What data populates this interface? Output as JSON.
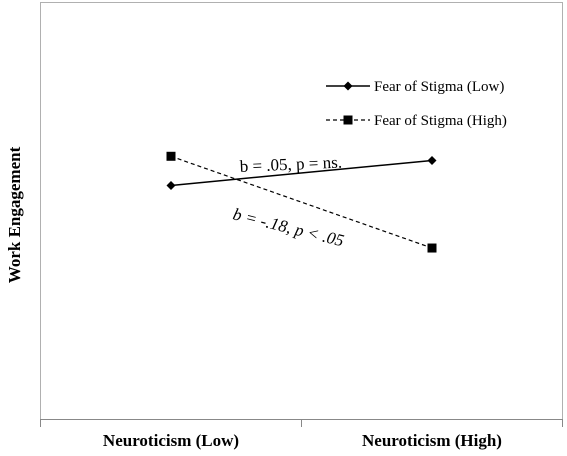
{
  "chart_data": {
    "type": "line",
    "categories": [
      "Neuroticism (Low)",
      "Neuroticism (High)"
    ],
    "ylabel": "Work Engagement",
    "xlabel": "",
    "title": "",
    "ylim": [
      0,
      100
    ],
    "grid": false,
    "legend_placement": "top-right",
    "series": [
      {
        "name": "Fear of Stigma (Low)",
        "values": [
          56,
          62
        ],
        "line_style": "solid",
        "marker": "diamond",
        "color": "#000000"
      },
      {
        "name": "Fear of Stigma (High)",
        "values": [
          63,
          41
        ],
        "line_style": "dashed",
        "marker": "square",
        "color": "#000000"
      }
    ],
    "annotations": [
      {
        "text": "b = .05, p = ns.",
        "series": 0
      },
      {
        "text": "b = -.18, p < .05",
        "series": 1
      }
    ]
  }
}
